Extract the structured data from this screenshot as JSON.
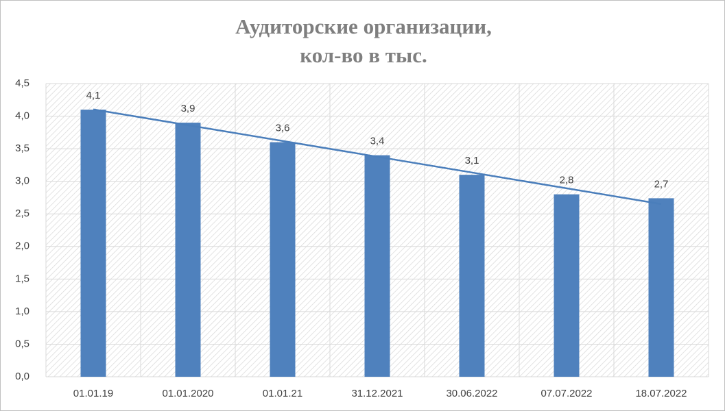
{
  "chart_data": {
    "type": "bar",
    "title": "Аудиторские организации,",
    "subtitle": "кол-во в тыс.",
    "categories": [
      "01.01.19",
      "01.01.2020",
      "01.01.21",
      "31.12.2021",
      "30.06.2022",
      "07.07.2022",
      "18.07.2022"
    ],
    "values": [
      4.1,
      3.9,
      3.6,
      3.4,
      3.1,
      2.8,
      2.74
    ],
    "value_labels": [
      "4,1",
      "3,9",
      "3,6",
      "3,4",
      "3,1",
      "2,8",
      "2,7"
    ],
    "color": "#4f81bd",
    "trendline": "linear",
    "trendline_color": "#4a7ebb",
    "ylim": [
      0,
      4.5
    ],
    "yticks": [
      {
        "value": 0,
        "label": "0,0"
      },
      {
        "value": 0.5,
        "label": "0,5"
      },
      {
        "value": 1,
        "label": "1,0"
      },
      {
        "value": 1.5,
        "label": "1,5"
      },
      {
        "value": 2,
        "label": "2,0"
      },
      {
        "value": 2.5,
        "label": "2,5"
      },
      {
        "value": 3,
        "label": "3,0"
      },
      {
        "value": 3.5,
        "label": "3,5"
      },
      {
        "value": 4,
        "label": "4,0"
      },
      {
        "value": 4.5,
        "label": "4,5"
      }
    ],
    "grid": true
  }
}
